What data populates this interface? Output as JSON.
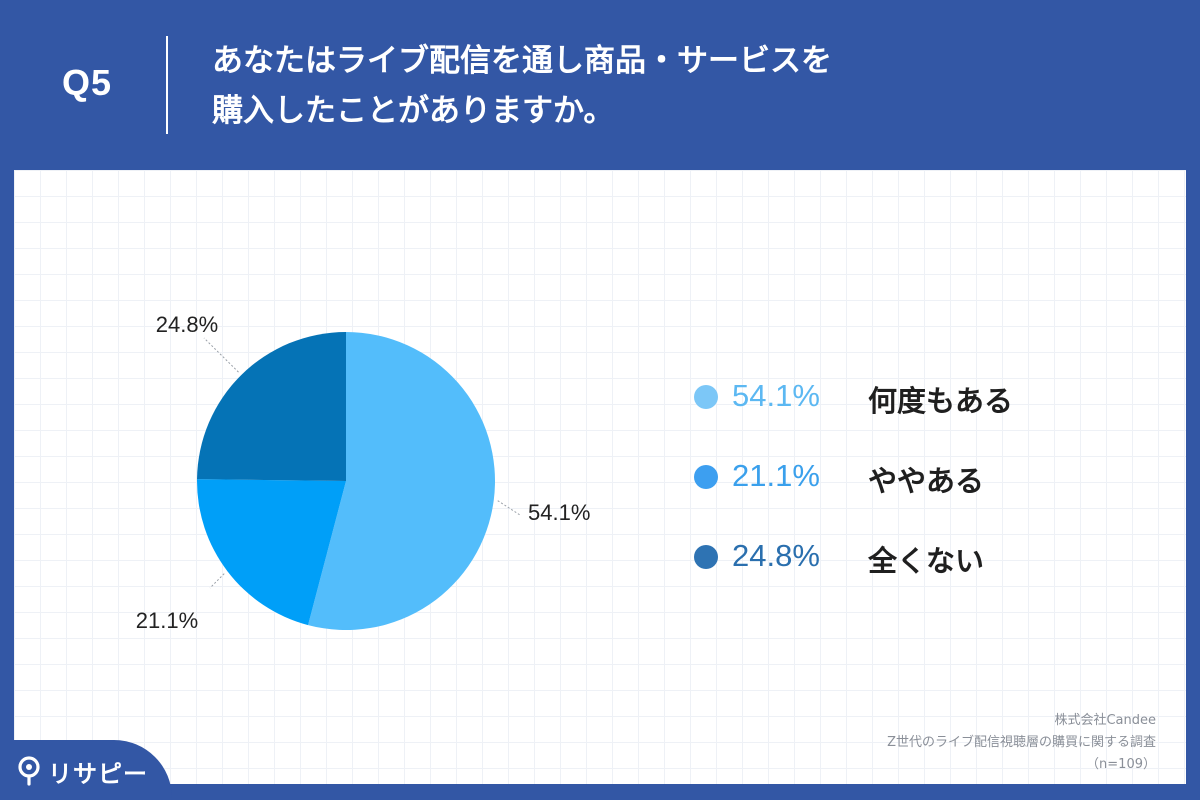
{
  "header": {
    "q_number": "Q5",
    "question_lines": [
      "あなたはライブ配信を通し商品・サービスを",
      "購入したことがありますか。"
    ]
  },
  "chart_data": {
    "type": "pie",
    "title": "",
    "categories": [
      "何度もある",
      "ややある",
      "全くない"
    ],
    "values": [
      54.1,
      21.1,
      24.8
    ],
    "value_labels": [
      "54.1%",
      "21.1%",
      "24.8%"
    ],
    "colors": [
      "#53bdfb",
      "#009ff8",
      "#0573b6"
    ],
    "start": "12 o'clock",
    "direction": "clockwise",
    "legend_placement": "right"
  },
  "legend": {
    "items": [
      {
        "pct": "54.1%",
        "label": "何度もある",
        "pct_color": "#5cb8f2",
        "dot_color": "#7cc7f7"
      },
      {
        "pct": "21.1%",
        "label": "ややある",
        "pct_color": "#3aa0ec",
        "dot_color": "#3d9ff0"
      },
      {
        "pct": "24.8%",
        "label": "全くない",
        "pct_color": "#2a6fae",
        "dot_color": "#2e73b3"
      }
    ]
  },
  "source": {
    "lines": [
      "株式会社Candee",
      "Z世代のライブ配信視聴層の購買に関する調査",
      "（n=109）"
    ]
  },
  "brand": {
    "name": "リサピー"
  }
}
